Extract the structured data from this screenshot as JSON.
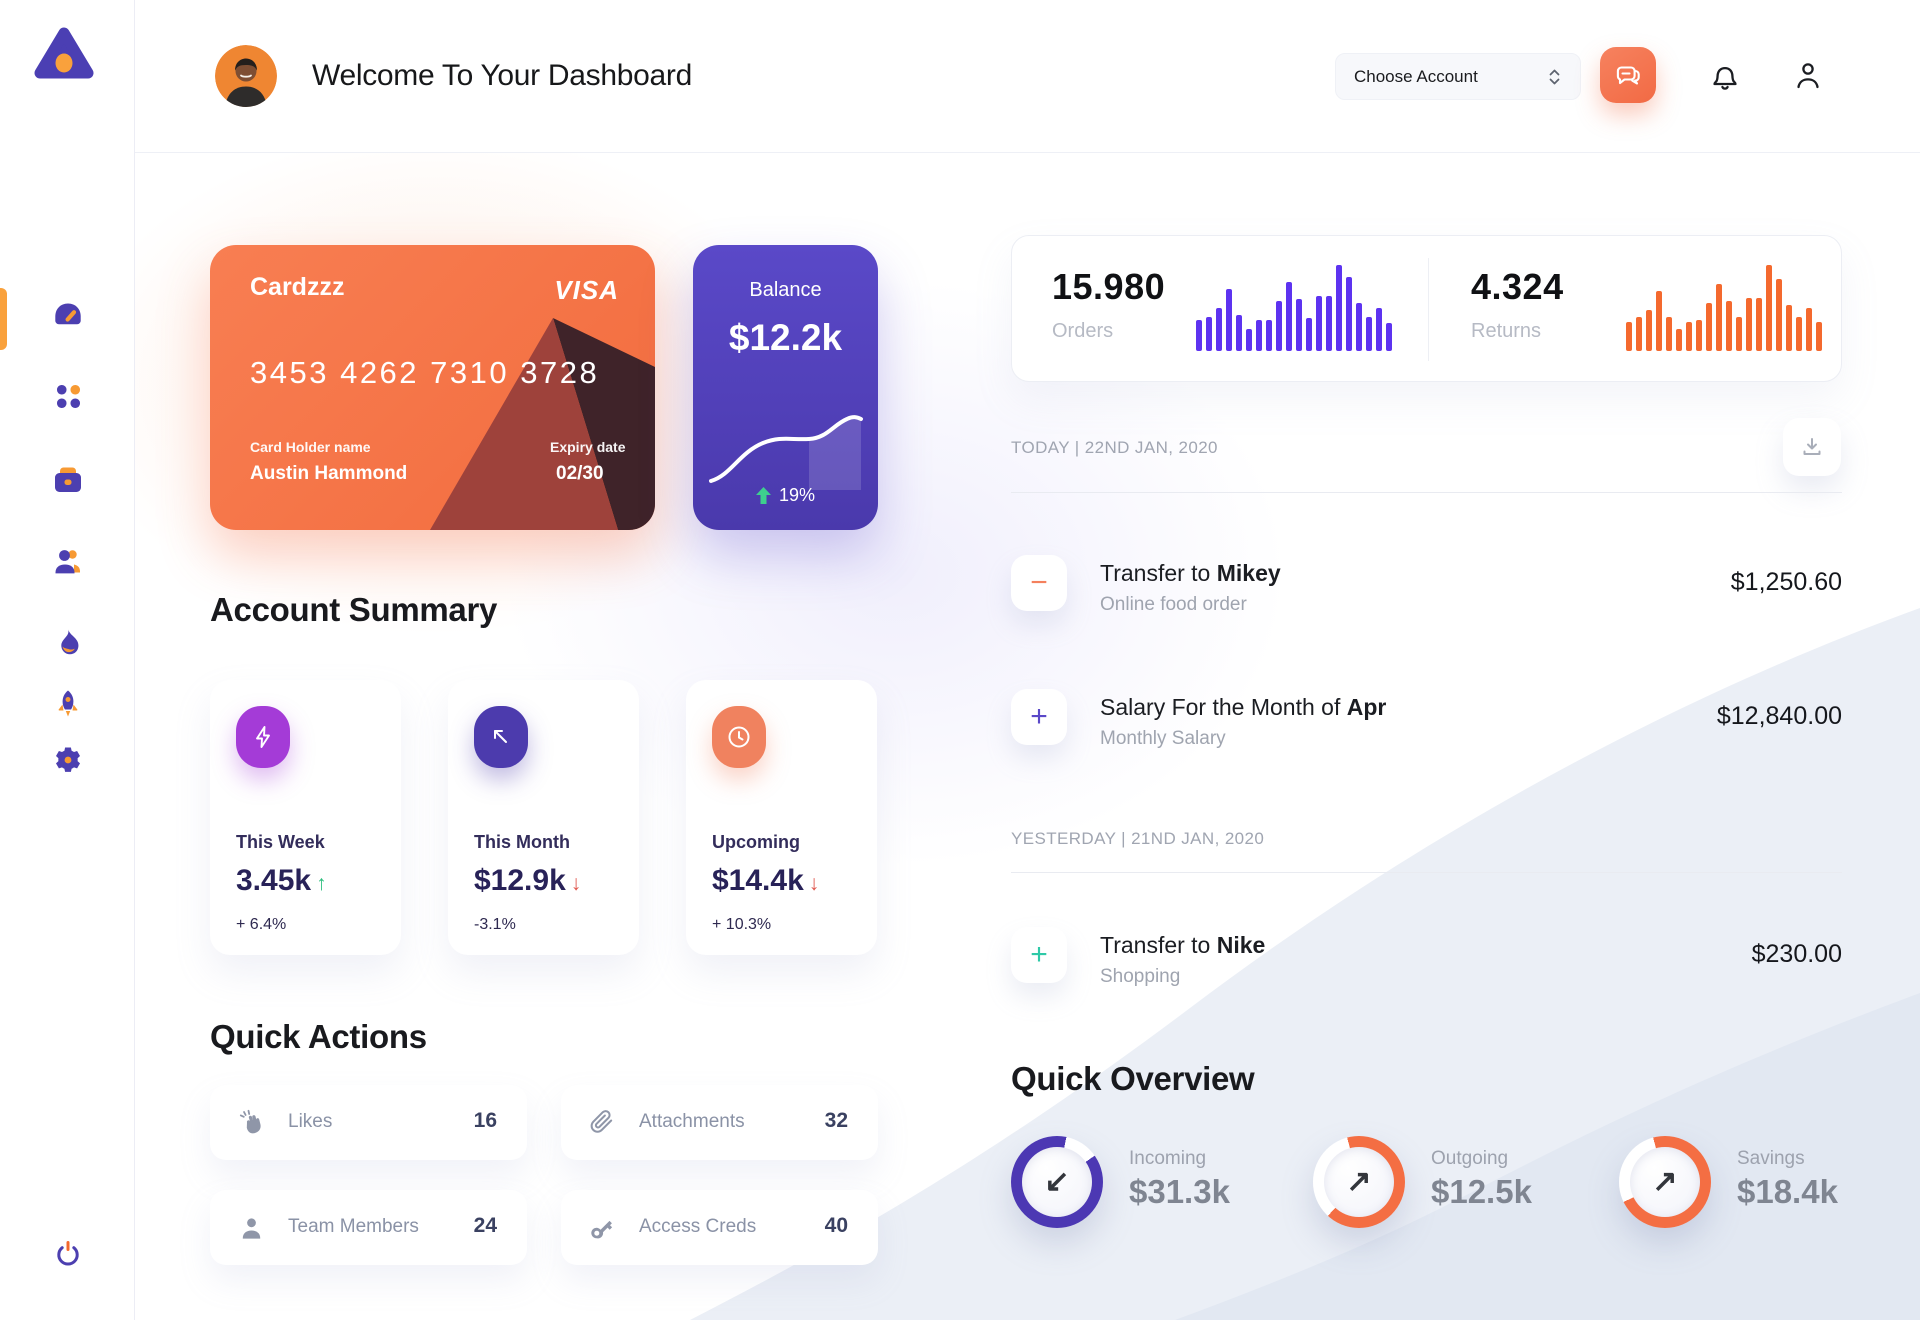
{
  "header": {
    "title": "Welcome To Your Dashboard",
    "account_select": "Choose Account"
  },
  "sidebar": {
    "items": [
      {
        "icon": "gauge-dashboard-icon",
        "active": true
      },
      {
        "icon": "apps-grid-icon",
        "active": false
      },
      {
        "icon": "briefcase-icon",
        "active": false
      },
      {
        "icon": "users-icon",
        "active": false
      },
      {
        "icon": "flame-icon",
        "active": false
      },
      {
        "icon": "rocket-icon",
        "active": false
      },
      {
        "icon": "gear-icon",
        "active": false
      }
    ],
    "logout_icon": "power-icon"
  },
  "card": {
    "name": "Cardzzz",
    "brand": "VISA",
    "number": "3453 4262 7310 3728",
    "holder_label": "Card Holder name",
    "holder": "Austin Hammond",
    "expiry_label": "Expiry date",
    "expiry": "02/30"
  },
  "balance": {
    "label": "Balance",
    "value": "$12.2k",
    "change": "19%",
    "change_direction": "up"
  },
  "stats": {
    "orders": {
      "value": "15.980",
      "label": "Orders",
      "bar_color": "#5D33F0",
      "bars": [
        36,
        40,
        50,
        72,
        42,
        26,
        36,
        36,
        58,
        80,
        60,
        38,
        64,
        64,
        100,
        86,
        56,
        40,
        50,
        32
      ]
    },
    "returns": {
      "value": "4.324",
      "label": "Returns",
      "bar_color": "#F4692E",
      "bars": [
        34,
        40,
        48,
        70,
        40,
        26,
        34,
        36,
        56,
        78,
        58,
        40,
        62,
        62,
        100,
        84,
        54,
        40,
        50,
        34
      ]
    }
  },
  "account_summary": {
    "title": "Account Summary",
    "cards": [
      {
        "label": "This Week",
        "value": "3.45k",
        "arrow": "↑",
        "arrow_color": "#2DBE7E",
        "change": "+ 6.4%",
        "icon": "lightning-icon",
        "icon_bg": "#A43BD7"
      },
      {
        "label": "This Month",
        "value": "$12.9k",
        "arrow": "↓",
        "arrow_color": "#E0584F",
        "change": "-3.1%",
        "icon": "arrow-up-left-icon",
        "icon_bg": "#4C3BAD"
      },
      {
        "label": "Upcoming",
        "value": "$14.4k",
        "arrow": "↓",
        "arrow_color": "#E0584F",
        "change": "+ 10.3%",
        "icon": "clock-icon",
        "icon_bg": "#F0825F"
      }
    ]
  },
  "quick_actions": {
    "title": "Quick Actions",
    "items": [
      {
        "label": "Likes",
        "count": "16",
        "icon": "clap-icon"
      },
      {
        "label": "Attachments",
        "count": "32",
        "icon": "paperclip-icon"
      },
      {
        "label": "Team Members",
        "count": "24",
        "icon": "person-icon"
      },
      {
        "label": "Access Creds",
        "count": "40",
        "icon": "key-icon"
      }
    ]
  },
  "transactions": {
    "groups": [
      {
        "date": "TODAY | 22ND JAN, 2020",
        "rows": [
          {
            "title_prefix": "Transfer to ",
            "title_bold": "Mikey",
            "subtitle": "Online food order",
            "amount": "$1,250.60",
            "sign": "−",
            "sign_color": "#F4805D"
          },
          {
            "title_prefix": "Salary For the Month of ",
            "title_bold": "Apr",
            "subtitle": "Monthly Salary",
            "amount": "$12,840.00",
            "sign": "+",
            "sign_color": "#5A48C8"
          }
        ]
      },
      {
        "date": "YESTERDAY | 21ND JAN, 2020",
        "rows": [
          {
            "title_prefix": "Transfer to ",
            "title_bold": "Nike",
            "subtitle": "Shopping",
            "amount": "$230.00",
            "sign": "+",
            "sign_color": "#2EC9A7"
          }
        ]
      }
    ]
  },
  "quick_overview": {
    "title": "Quick Overview",
    "items": [
      {
        "label": "Incoming",
        "value": "$31.3k",
        "arrow": "↙",
        "ring_color": "#4C38B3",
        "pct": 88,
        "start_deg": 55
      },
      {
        "label": "Outgoing",
        "value": "$12.5k",
        "arrow": "↗",
        "ring_color": "#F46E43",
        "pct": 66,
        "start_deg": 345
      },
      {
        "label": "Savings",
        "value": "$18.4k",
        "arrow": "↗",
        "ring_color": "#F46E43",
        "pct": 72,
        "start_deg": 345
      }
    ]
  },
  "chart_data": [
    {
      "type": "bar",
      "title": "Orders activity sparkline",
      "values": [
        36,
        40,
        50,
        72,
        42,
        26,
        36,
        36,
        58,
        80,
        60,
        38,
        64,
        64,
        100,
        86,
        56,
        40,
        50,
        32
      ],
      "ylabel": "relative activity (est.)",
      "legend": "none"
    },
    {
      "type": "bar",
      "title": "Returns activity sparkline",
      "values": [
        34,
        40,
        48,
        70,
        40,
        26,
        34,
        36,
        56,
        78,
        58,
        40,
        62,
        62,
        100,
        84,
        54,
        40,
        50,
        34
      ],
      "ylabel": "relative activity (est.)",
      "legend": "none"
    },
    {
      "type": "line",
      "title": "Balance trend",
      "x": [
        0,
        1,
        2,
        3,
        4,
        5,
        6,
        7
      ],
      "values": [
        10,
        18,
        40,
        48,
        50,
        50,
        72,
        76
      ],
      "ylabel": "relative balance (est.)",
      "annotation": "19% up"
    }
  ]
}
